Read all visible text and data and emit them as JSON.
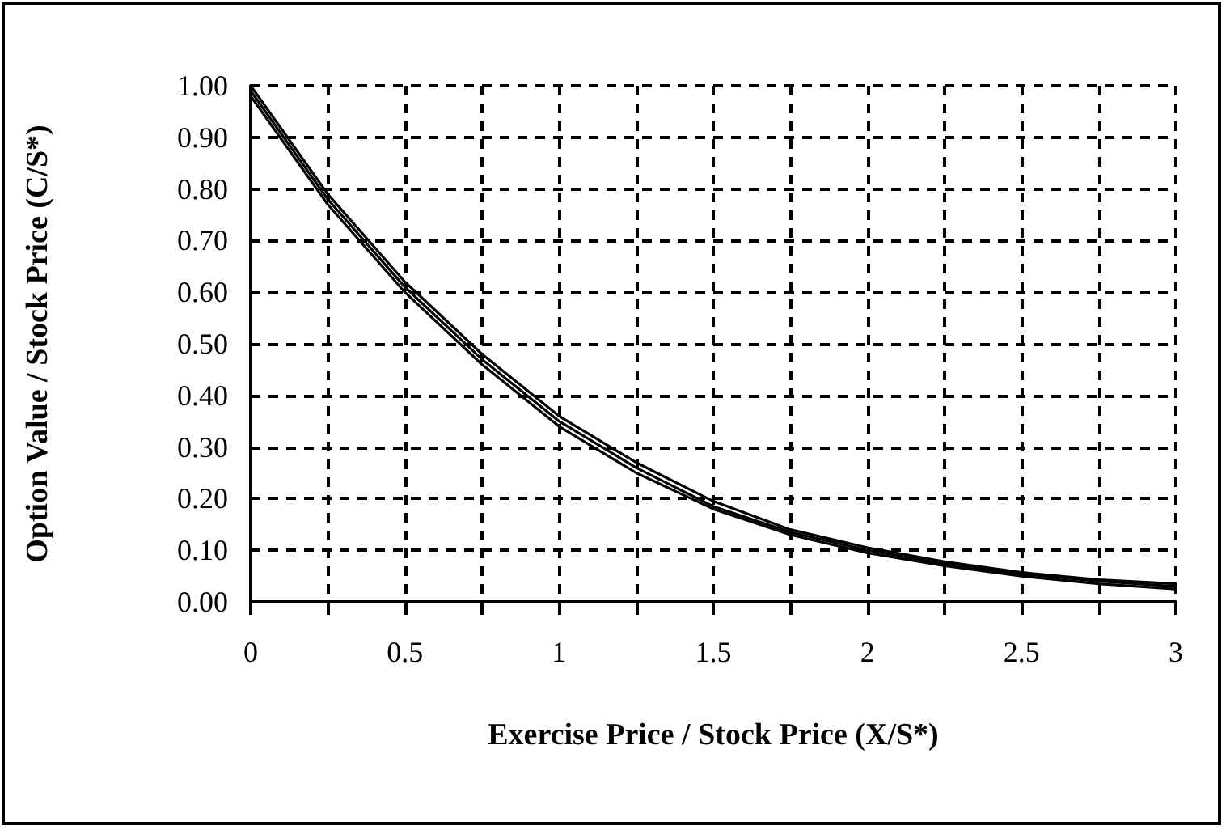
{
  "chart_data": {
    "type": "line",
    "xlabel": "Exercise Price / Stock Price (X/S*)",
    "ylabel": "Option Value / Stock Price (C/S*)",
    "x": [
      0,
      0.25,
      0.5,
      0.75,
      1,
      1.25,
      1.5,
      1.75,
      2,
      2.25,
      2.5,
      2.75,
      3
    ],
    "series": [
      {
        "color": "#000000",
        "values": [
          1.0,
          0.79,
          0.62,
          0.48,
          0.36,
          0.27,
          0.195,
          0.14,
          0.105,
          0.078,
          0.057,
          0.043,
          0.035
        ]
      },
      {
        "color": "#000000",
        "values": [
          0.99,
          0.78,
          0.61,
          0.47,
          0.35,
          0.26,
          0.185,
          0.135,
          0.1,
          0.074,
          0.054,
          0.04,
          0.03
        ]
      },
      {
        "color": "#000000",
        "values": [
          0.98,
          0.77,
          0.6,
          0.46,
          0.34,
          0.25,
          0.18,
          0.13,
          0.095,
          0.07,
          0.05,
          0.035,
          0.025
        ]
      }
    ],
    "xlim": [
      0,
      3
    ],
    "ylim": [
      0,
      1
    ],
    "xticks": [
      0,
      {
        "value": 0.25,
        "label": null
      },
      0.5,
      {
        "value": 0.75,
        "label": null
      },
      1,
      {
        "value": 1.25,
        "label": null
      },
      1.5,
      {
        "value": 1.75,
        "label": null
      },
      2,
      {
        "value": 2.25,
        "label": null
      },
      2.5,
      {
        "value": 2.75,
        "label": null
      },
      3
    ],
    "yticks": [
      {
        "value": 0,
        "label": "0.00"
      },
      {
        "value": 0.1,
        "label": "0.10"
      },
      {
        "value": 0.2,
        "label": "0.20"
      },
      {
        "value": 0.3,
        "label": "0.30"
      },
      {
        "value": 0.4,
        "label": "0.40"
      },
      {
        "value": 0.5,
        "label": "0.50"
      },
      {
        "value": 0.6,
        "label": "0.60"
      },
      {
        "value": 0.7,
        "label": "0.70"
      },
      {
        "value": 0.8,
        "label": "0.80"
      },
      {
        "value": 0.9,
        "label": "0.90"
      },
      {
        "value": 1,
        "label": "1.00"
      }
    ],
    "grid": true,
    "marker": "none",
    "line_style": "solid"
  }
}
